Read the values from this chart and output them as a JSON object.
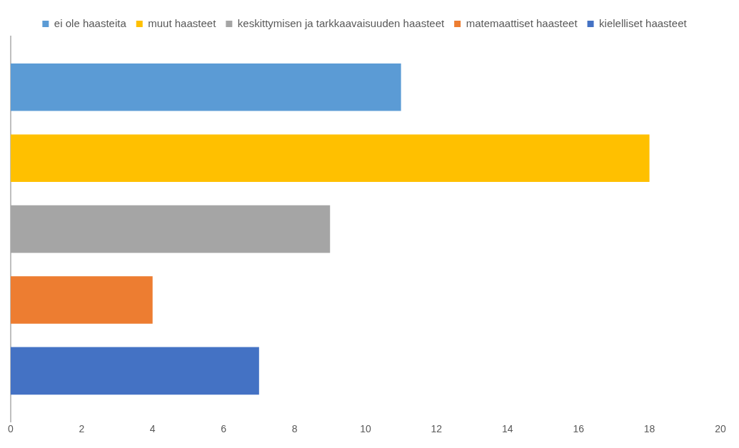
{
  "chart_data": {
    "type": "bar",
    "orientation": "horizontal",
    "categories": [
      null
    ],
    "series": [
      {
        "name": "ei ole haasteita",
        "color": "#5b9bd5",
        "values": [
          11
        ]
      },
      {
        "name": "muut haasteet",
        "color": "#ffc000",
        "values": [
          18
        ]
      },
      {
        "name": "keskittymisen ja tarkkaavaisuuden haasteet",
        "color": "#a5a5a5",
        "values": [
          9
        ]
      },
      {
        "name": "matemaattiset haasteet",
        "color": "#ed7d31",
        "values": [
          4
        ]
      },
      {
        "name": "kielelliset haasteet",
        "color": "#4472c4",
        "values": [
          7
        ]
      }
    ],
    "xlim": [
      0,
      20
    ],
    "xticks": [
      0,
      2,
      4,
      6,
      8,
      10,
      12,
      14,
      16,
      18,
      20
    ],
    "grid": false,
    "legend": "top"
  }
}
